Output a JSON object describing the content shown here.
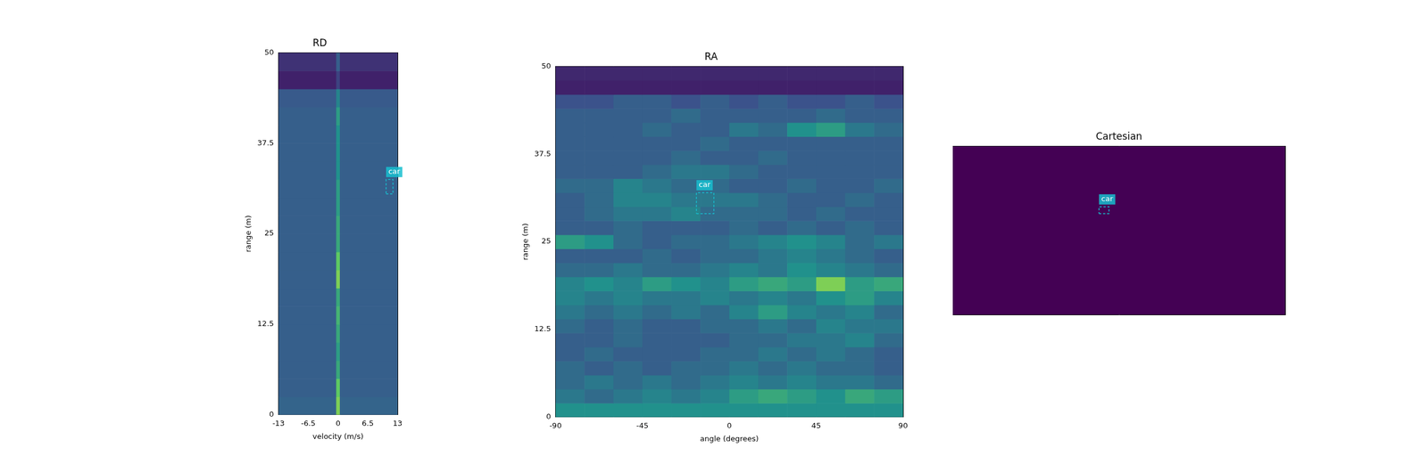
{
  "chart_data": [
    {
      "type": "heatmap",
      "title": "RD",
      "x_label": "velocity (m/s)",
      "y_label": "range (m)",
      "xlim": [
        -13,
        13
      ],
      "ylim": [
        0,
        50
      ],
      "xticks": [
        -13,
        -6.5,
        0,
        6.5,
        13
      ],
      "yticks": [
        0,
        12.5,
        25,
        37.5,
        50
      ],
      "grid": false,
      "heatmap": {
        "x_edges": [
          -13,
          -0.4,
          0.4,
          13
        ],
        "y_edges": [
          0,
          2.5,
          5,
          7.5,
          10,
          12.5,
          15,
          17.5,
          20,
          22.5,
          25,
          27.5,
          30,
          32.5,
          35,
          37.5,
          40,
          42.5,
          45,
          47.5,
          50
        ],
        "zlim": [
          0,
          1
        ],
        "z": [
          [
            0.32,
            0.8,
            0.32
          ],
          [
            0.3,
            0.75,
            0.3
          ],
          [
            0.3,
            0.6,
            0.3
          ],
          [
            0.3,
            0.55,
            0.3
          ],
          [
            0.3,
            0.6,
            0.3
          ],
          [
            0.3,
            0.65,
            0.3
          ],
          [
            0.3,
            0.6,
            0.3
          ],
          [
            0.3,
            0.8,
            0.3
          ],
          [
            0.3,
            0.75,
            0.3
          ],
          [
            0.3,
            0.6,
            0.3
          ],
          [
            0.3,
            0.6,
            0.3
          ],
          [
            0.3,
            0.55,
            0.3
          ],
          [
            0.3,
            0.55,
            0.3
          ],
          [
            0.3,
            0.5,
            0.3
          ],
          [
            0.3,
            0.5,
            0.3
          ],
          [
            0.3,
            0.5,
            0.3
          ],
          [
            0.3,
            0.55,
            0.3
          ],
          [
            0.28,
            0.45,
            0.28
          ],
          [
            0.1,
            0.2,
            0.1
          ],
          [
            0.15,
            0.3,
            0.15
          ]
        ]
      },
      "annotations": [
        {
          "label": "car",
          "box": {
            "x": [
              10.5,
              12
            ],
            "y": [
              30.5,
              32.5
            ]
          }
        }
      ]
    },
    {
      "type": "heatmap",
      "title": "RA",
      "x_label": "angle (degrees)",
      "y_label": "range (m)",
      "xlim": [
        -90,
        90
      ],
      "ylim": [
        0,
        50
      ],
      "xticks": [
        -90,
        -45,
        0,
        45,
        90
      ],
      "yticks": [
        0,
        12.5,
        25,
        37.5,
        50
      ],
      "grid": false,
      "heatmap": {
        "x_edges": [
          -90,
          -75,
          -60,
          -45,
          -30,
          -15,
          0,
          15,
          30,
          45,
          60,
          75,
          90
        ],
        "y_edges": [
          0,
          2,
          4,
          6,
          8,
          10,
          12,
          14,
          16,
          18,
          20,
          22,
          24,
          26,
          28,
          30,
          32,
          34,
          36,
          38,
          40,
          42,
          44,
          46,
          48,
          50
        ],
        "zlim": [
          0,
          1
        ],
        "z": [
          [
            0.5,
            0.5,
            0.5,
            0.5,
            0.5,
            0.5,
            0.5,
            0.5,
            0.5,
            0.5,
            0.5,
            0.5
          ],
          [
            0.4,
            0.35,
            0.4,
            0.45,
            0.4,
            0.45,
            0.55,
            0.6,
            0.55,
            0.5,
            0.6,
            0.55
          ],
          [
            0.35,
            0.4,
            0.35,
            0.4,
            0.35,
            0.4,
            0.45,
            0.4,
            0.45,
            0.4,
            0.4,
            0.35
          ],
          [
            0.35,
            0.3,
            0.35,
            0.3,
            0.35,
            0.35,
            0.4,
            0.35,
            0.4,
            0.35,
            0.35,
            0.3
          ],
          [
            0.3,
            0.35,
            0.3,
            0.3,
            0.3,
            0.35,
            0.35,
            0.4,
            0.35,
            0.4,
            0.35,
            0.3
          ],
          [
            0.3,
            0.3,
            0.35,
            0.3,
            0.3,
            0.3,
            0.35,
            0.35,
            0.4,
            0.4,
            0.45,
            0.35
          ],
          [
            0.35,
            0.3,
            0.35,
            0.3,
            0.3,
            0.35,
            0.35,
            0.4,
            0.35,
            0.45,
            0.4,
            0.4
          ],
          [
            0.4,
            0.35,
            0.4,
            0.35,
            0.4,
            0.35,
            0.45,
            0.55,
            0.45,
            0.4,
            0.45,
            0.35
          ],
          [
            0.45,
            0.4,
            0.45,
            0.4,
            0.4,
            0.45,
            0.4,
            0.45,
            0.4,
            0.5,
            0.55,
            0.45
          ],
          [
            0.45,
            0.5,
            0.45,
            0.55,
            0.5,
            0.45,
            0.55,
            0.6,
            0.55,
            0.8,
            0.55,
            0.6
          ],
          [
            0.35,
            0.35,
            0.4,
            0.35,
            0.35,
            0.4,
            0.45,
            0.4,
            0.5,
            0.45,
            0.4,
            0.35
          ],
          [
            0.3,
            0.3,
            0.3,
            0.35,
            0.3,
            0.35,
            0.35,
            0.4,
            0.45,
            0.4,
            0.35,
            0.3
          ],
          [
            0.55,
            0.5,
            0.35,
            0.3,
            0.35,
            0.35,
            0.4,
            0.45,
            0.5,
            0.45,
            0.35,
            0.4
          ],
          [
            0.3,
            0.3,
            0.35,
            0.3,
            0.3,
            0.3,
            0.35,
            0.3,
            0.35,
            0.3,
            0.35,
            0.3
          ],
          [
            0.3,
            0.35,
            0.4,
            0.4,
            0.45,
            0.35,
            0.35,
            0.35,
            0.3,
            0.35,
            0.3,
            0.3
          ],
          [
            0.3,
            0.35,
            0.45,
            0.45,
            0.4,
            0.4,
            0.4,
            0.35,
            0.3,
            0.3,
            0.35,
            0.3
          ],
          [
            0.35,
            0.35,
            0.45,
            0.4,
            0.35,
            0.35,
            0.3,
            0.3,
            0.35,
            0.3,
            0.3,
            0.35
          ],
          [
            0.3,
            0.3,
            0.3,
            0.35,
            0.4,
            0.4,
            0.35,
            0.3,
            0.3,
            0.3,
            0.3,
            0.3
          ],
          [
            0.3,
            0.3,
            0.3,
            0.3,
            0.35,
            0.3,
            0.3,
            0.35,
            0.3,
            0.3,
            0.3,
            0.3
          ],
          [
            0.3,
            0.3,
            0.3,
            0.3,
            0.3,
            0.35,
            0.3,
            0.3,
            0.3,
            0.3,
            0.3,
            0.3
          ],
          [
            0.3,
            0.3,
            0.3,
            0.35,
            0.3,
            0.3,
            0.4,
            0.35,
            0.5,
            0.55,
            0.4,
            0.35
          ],
          [
            0.3,
            0.3,
            0.3,
            0.3,
            0.35,
            0.3,
            0.3,
            0.3,
            0.3,
            0.35,
            0.3,
            0.3
          ],
          [
            0.25,
            0.25,
            0.3,
            0.3,
            0.25,
            0.3,
            0.25,
            0.3,
            0.25,
            0.25,
            0.3,
            0.25
          ],
          [
            0.1,
            0.1,
            0.1,
            0.1,
            0.1,
            0.1,
            0.1,
            0.1,
            0.1,
            0.1,
            0.1,
            0.1
          ],
          [
            0.12,
            0.12,
            0.12,
            0.12,
            0.12,
            0.12,
            0.12,
            0.12,
            0.12,
            0.12,
            0.12,
            0.12
          ]
        ]
      },
      "annotations": [
        {
          "label": "car",
          "box": {
            "x": [
              -17,
              -8
            ],
            "y": [
              29,
              32
            ]
          }
        }
      ]
    },
    {
      "type": "heatmap",
      "title": "Cartesian",
      "xlim": [
        -50,
        50
      ],
      "ylim": [
        0,
        50
      ],
      "tick_labels": false,
      "grid": false,
      "heatmap": {
        "x_edges": [
          -50,
          50
        ],
        "y_edges": [
          0,
          50
        ],
        "zlim": [
          0,
          1
        ],
        "z": [
          [
            0
          ]
        ]
      },
      "annotations": [
        {
          "label": "car",
          "box": {
            "x": [
              -6,
              -3
            ],
            "y": [
              30,
              32
            ]
          }
        }
      ]
    }
  ]
}
